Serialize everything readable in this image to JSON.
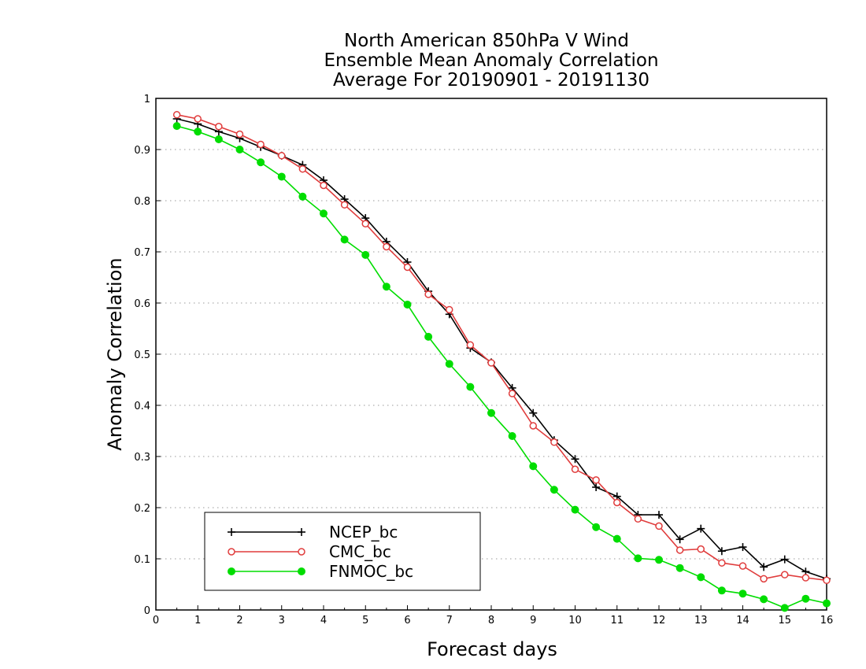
{
  "chart_data": {
    "type": "line",
    "title": [
      "North American 850hPa V Wind",
      "Ensemble Mean Anomaly Correlation",
      "Average For 20190901 - 20191130"
    ],
    "xlabel": "Forecast days",
    "ylabel": "Anomaly Correlation",
    "xlim": [
      0,
      16
    ],
    "ylim": [
      0,
      1
    ],
    "xticks": [
      "0",
      "1",
      "2",
      "3",
      "4",
      "5",
      "6",
      "7",
      "8",
      "9",
      "10",
      "11",
      "12",
      "13",
      "14",
      "15",
      "16"
    ],
    "yticks": [
      "0",
      "0.1",
      "0.2",
      "0.3",
      "0.4",
      "0.5",
      "0.6",
      "0.7",
      "0.8",
      "0.9",
      "1"
    ],
    "grid": "horizontal dotted",
    "legend_position": "bottom-left",
    "x": [
      0.5,
      1,
      1.5,
      2,
      2.5,
      3,
      3.5,
      4,
      4.5,
      5,
      5.5,
      6,
      6.5,
      7,
      7.5,
      8,
      8.5,
      9,
      9.5,
      10,
      10.5,
      11,
      11.5,
      12,
      12.5,
      13,
      13.5,
      14,
      14.5,
      15,
      15.5,
      16
    ],
    "series": [
      {
        "name": "NCEP_bc",
        "color": "#000000",
        "marker": "plus",
        "values": [
          0.96,
          0.95,
          0.935,
          0.922,
          0.905,
          0.888,
          0.87,
          0.84,
          0.803,
          0.766,
          0.72,
          0.68,
          0.623,
          0.578,
          0.512,
          0.484,
          0.434,
          0.385,
          0.332,
          0.295,
          0.24,
          0.222,
          0.186,
          0.186,
          0.138,
          0.159,
          0.115,
          0.123,
          0.084,
          0.099,
          0.075,
          0.061
        ]
      },
      {
        "name": "CMC_bc",
        "color": "#e03c3c",
        "marker": "open-circle",
        "values": [
          0.968,
          0.96,
          0.945,
          0.93,
          0.91,
          0.888,
          0.862,
          0.83,
          0.792,
          0.755,
          0.71,
          0.67,
          0.617,
          0.587,
          0.518,
          0.483,
          0.423,
          0.36,
          0.328,
          0.275,
          0.254,
          0.21,
          0.178,
          0.164,
          0.117,
          0.119,
          0.092,
          0.086,
          0.061,
          0.069,
          0.063,
          0.058
        ]
      },
      {
        "name": "FNMOC_bc",
        "color": "#00dd00",
        "marker": "filled-circle",
        "values": [
          0.946,
          0.935,
          0.92,
          0.9,
          0.875,
          0.847,
          0.808,
          0.775,
          0.724,
          0.694,
          0.632,
          0.597,
          0.534,
          0.481,
          0.436,
          0.385,
          0.34,
          0.281,
          0.235,
          0.196,
          0.162,
          0.139,
          0.101,
          0.098,
          0.082,
          0.064,
          0.038,
          0.032,
          0.021,
          0.004,
          0.022,
          0.013
        ]
      }
    ]
  }
}
